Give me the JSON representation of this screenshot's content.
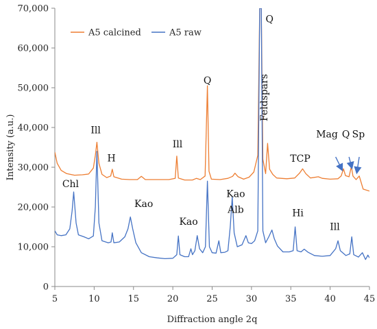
{
  "chart_data": {
    "type": "line",
    "xlabel": "Diffraction angle 2q",
    "ylabel": "Intensity (a.u.)",
    "xlim": [
      5,
      45
    ],
    "ylim": [
      0,
      70000
    ],
    "x_ticks": [
      5,
      10,
      15,
      20,
      25,
      30,
      35,
      40,
      45
    ],
    "x_tick_labels": [
      "5",
      "10",
      "15",
      "20",
      "25",
      "30",
      "35",
      "40",
      "45"
    ],
    "y_ticks": [
      0,
      10000,
      20000,
      30000,
      40000,
      50000,
      60000,
      70000
    ],
    "y_tick_labels": [
      "0",
      "10,000",
      "20,000",
      "30,000",
      "40,000",
      "50,000",
      "60,000",
      "70,000"
    ],
    "grid": false,
    "legend_position": "top-left",
    "series": [
      {
        "name": "A5 calcined",
        "color": "#ED7D31",
        "points": [
          [
            5.0,
            33800
          ],
          [
            5.3,
            31000
          ],
          [
            5.8,
            29200
          ],
          [
            6.5,
            28400
          ],
          [
            7.5,
            28000
          ],
          [
            8.5,
            28100
          ],
          [
            9.3,
            28300
          ],
          [
            9.9,
            29800
          ],
          [
            10.15,
            33000
          ],
          [
            10.35,
            36300
          ],
          [
            10.6,
            31000
          ],
          [
            11.0,
            28200
          ],
          [
            11.6,
            27400
          ],
          [
            12.1,
            27800
          ],
          [
            12.3,
            29500
          ],
          [
            12.5,
            27600
          ],
          [
            13.5,
            27000
          ],
          [
            14.5,
            26900
          ],
          [
            15.5,
            26900
          ],
          [
            16.0,
            27700
          ],
          [
            16.5,
            26900
          ],
          [
            18.0,
            26900
          ],
          [
            19.5,
            26900
          ],
          [
            20.3,
            27200
          ],
          [
            20.5,
            32800
          ],
          [
            20.7,
            27300
          ],
          [
            21.5,
            26800
          ],
          [
            22.5,
            26800
          ],
          [
            23.0,
            27200
          ],
          [
            23.5,
            26900
          ],
          [
            24.1,
            27800
          ],
          [
            24.4,
            50500
          ],
          [
            24.6,
            29000
          ],
          [
            24.9,
            27000
          ],
          [
            26.0,
            26900
          ],
          [
            27.0,
            27200
          ],
          [
            27.6,
            27700
          ],
          [
            27.9,
            28500
          ],
          [
            28.3,
            27600
          ],
          [
            29.0,
            27000
          ],
          [
            29.7,
            27500
          ],
          [
            30.3,
            28800
          ],
          [
            30.8,
            33000
          ],
          [
            31.05,
            70000
          ],
          [
            31.25,
            70000
          ],
          [
            31.45,
            32000
          ],
          [
            31.8,
            28400
          ],
          [
            32.05,
            36000
          ],
          [
            32.3,
            29500
          ],
          [
            32.7,
            28200
          ],
          [
            33.2,
            27300
          ],
          [
            34.5,
            27100
          ],
          [
            35.5,
            27300
          ],
          [
            36.1,
            28500
          ],
          [
            36.5,
            29600
          ],
          [
            36.9,
            28400
          ],
          [
            37.5,
            27300
          ],
          [
            38.5,
            27600
          ],
          [
            39.0,
            27200
          ],
          [
            40.0,
            27000
          ],
          [
            41.0,
            27100
          ],
          [
            41.4,
            27800
          ],
          [
            41.7,
            29600
          ],
          [
            41.95,
            27900
          ],
          [
            42.4,
            27600
          ],
          [
            42.7,
            30200
          ],
          [
            42.9,
            27800
          ],
          [
            43.3,
            26900
          ],
          [
            43.7,
            27800
          ],
          [
            44.2,
            24500
          ],
          [
            45.0,
            24000
          ]
        ]
      },
      {
        "name": "A5 raw",
        "color": "#4472C4",
        "points": [
          [
            5.0,
            14000
          ],
          [
            5.3,
            13000
          ],
          [
            5.8,
            12800
          ],
          [
            6.4,
            13000
          ],
          [
            6.9,
            14500
          ],
          [
            7.2,
            19000
          ],
          [
            7.4,
            23800
          ],
          [
            7.7,
            16000
          ],
          [
            8.0,
            13000
          ],
          [
            8.7,
            12500
          ],
          [
            9.3,
            12000
          ],
          [
            9.9,
            12700
          ],
          [
            10.15,
            20000
          ],
          [
            10.35,
            34000
          ],
          [
            10.6,
            16000
          ],
          [
            11.0,
            11500
          ],
          [
            11.8,
            11000
          ],
          [
            12.15,
            11200
          ],
          [
            12.3,
            13500
          ],
          [
            12.5,
            11000
          ],
          [
            13.2,
            11200
          ],
          [
            13.9,
            12500
          ],
          [
            14.3,
            14500
          ],
          [
            14.6,
            17500
          ],
          [
            14.9,
            14500
          ],
          [
            15.3,
            11000
          ],
          [
            16.0,
            8500
          ],
          [
            17.0,
            7500
          ],
          [
            18.0,
            7200
          ],
          [
            19.0,
            7000
          ],
          [
            20.0,
            7100
          ],
          [
            20.5,
            8000
          ],
          [
            20.7,
            12700
          ],
          [
            20.9,
            8000
          ],
          [
            21.5,
            7500
          ],
          [
            22.0,
            7500
          ],
          [
            22.3,
            9500
          ],
          [
            22.5,
            8000
          ],
          [
            22.8,
            9000
          ],
          [
            23.1,
            12800
          ],
          [
            23.4,
            9500
          ],
          [
            23.8,
            8500
          ],
          [
            24.15,
            10000
          ],
          [
            24.4,
            26500
          ],
          [
            24.65,
            10000
          ],
          [
            25.0,
            8500
          ],
          [
            25.5,
            8400
          ],
          [
            25.85,
            11500
          ],
          [
            26.1,
            8500
          ],
          [
            26.6,
            8600
          ],
          [
            27.0,
            9000
          ],
          [
            27.3,
            15000
          ],
          [
            27.55,
            22500
          ],
          [
            27.8,
            13500
          ],
          [
            28.2,
            10000
          ],
          [
            28.8,
            10500
          ],
          [
            29.3,
            12800
          ],
          [
            29.6,
            11000
          ],
          [
            30.0,
            10800
          ],
          [
            30.4,
            11500
          ],
          [
            30.8,
            14000
          ],
          [
            31.05,
            70000
          ],
          [
            31.25,
            70000
          ],
          [
            31.45,
            14000
          ],
          [
            31.8,
            11000
          ],
          [
            32.2,
            12500
          ],
          [
            32.6,
            14200
          ],
          [
            32.9,
            12000
          ],
          [
            33.3,
            10200
          ],
          [
            34.0,
            8700
          ],
          [
            34.8,
            8700
          ],
          [
            35.3,
            9000
          ],
          [
            35.55,
            15000
          ],
          [
            35.8,
            9000
          ],
          [
            36.3,
            8700
          ],
          [
            36.7,
            9400
          ],
          [
            37.2,
            8600
          ],
          [
            38.0,
            7800
          ],
          [
            39.0,
            7600
          ],
          [
            40.0,
            7800
          ],
          [
            40.7,
            9500
          ],
          [
            41.0,
            11500
          ],
          [
            41.3,
            9000
          ],
          [
            42.0,
            7800
          ],
          [
            42.5,
            8200
          ],
          [
            42.75,
            12500
          ],
          [
            43.0,
            8000
          ],
          [
            43.6,
            7400
          ],
          [
            44.1,
            8500
          ],
          [
            44.5,
            6800
          ],
          [
            44.8,
            7900
          ],
          [
            45.0,
            7200
          ]
        ]
      }
    ],
    "annotations": [
      {
        "text": "Q",
        "x": 24.4,
        "y": 51000
      },
      {
        "text": "Q",
        "x": 32.3,
        "y": 66500
      },
      {
        "text": "Feldspars",
        "x": 32.0,
        "y": 47500,
        "rotation": -90
      },
      {
        "text": "Ill",
        "x": 10.2,
        "y": 38500
      },
      {
        "text": "H",
        "x": 12.2,
        "y": 31500
      },
      {
        "text": "Ill",
        "x": 20.6,
        "y": 35000
      },
      {
        "text": "TCP",
        "x": 36.2,
        "y": 31400
      },
      {
        "text": "Mag",
        "x": 39.6,
        "y": 37500
      },
      {
        "text": "Q",
        "x": 42.0,
        "y": 37500
      },
      {
        "text": "Sp",
        "x": 43.6,
        "y": 37500
      },
      {
        "text": "Chl",
        "x": 7.0,
        "y": 25000
      },
      {
        "text": "Kao",
        "x": 16.3,
        "y": 20000
      },
      {
        "text": "Kao",
        "x": 22.0,
        "y": 15500
      },
      {
        "text": "Kao",
        "x": 28.0,
        "y": 22500
      },
      {
        "text": "Alb",
        "x": 28.0,
        "y": 18500
      },
      {
        "text": "Hi",
        "x": 35.9,
        "y": 17700
      },
      {
        "text": "Ill",
        "x": 40.6,
        "y": 14200
      }
    ],
    "arrows": [
      {
        "from": [
          40.7,
          32600
        ],
        "to": [
          41.5,
          29400
        ]
      },
      {
        "from": [
          42.4,
          32600
        ],
        "to": [
          42.75,
          29900
        ]
      },
      {
        "from": [
          43.7,
          32600
        ],
        "to": [
          43.4,
          28700
        ]
      }
    ]
  }
}
